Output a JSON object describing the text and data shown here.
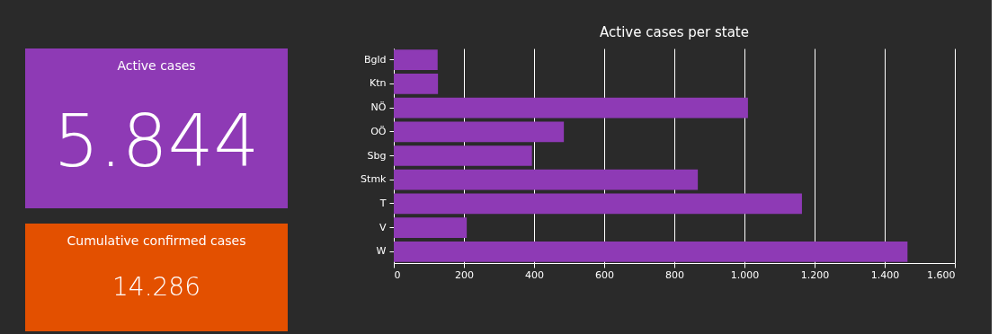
{
  "chart_data": [
    {
      "type": "other",
      "title": "Active cases",
      "annotations": [
        "5.844"
      ],
      "colors": [
        "#8e3ab5"
      ]
    },
    {
      "type": "other",
      "title": "Cumulative confirmed cases",
      "annotations": [
        "14.286"
      ],
      "colors": [
        "#e35000"
      ]
    },
    {
      "type": "bar",
      "orientation": "horizontal",
      "title": "Active cases per state",
      "categories": [
        "Bgld",
        "Ktn",
        "NÖ",
        "OÖ",
        "Sbg",
        "Stmk",
        "T",
        "V",
        "W"
      ],
      "values": [
        125,
        126,
        1010,
        485,
        394,
        867,
        1164,
        208,
        1465
      ],
      "color": "#8e3ab5",
      "xlim": [
        0,
        1600
      ],
      "xticks": [
        0,
        200,
        400,
        600,
        800,
        {
          "value": 1000,
          "label": "1.000"
        },
        {
          "value": 1200,
          "label": "1.200"
        },
        {
          "value": 1400,
          "label": "1.400"
        },
        {
          "value": 1600,
          "label": "1.600"
        }
      ],
      "grid": "x"
    }
  ]
}
